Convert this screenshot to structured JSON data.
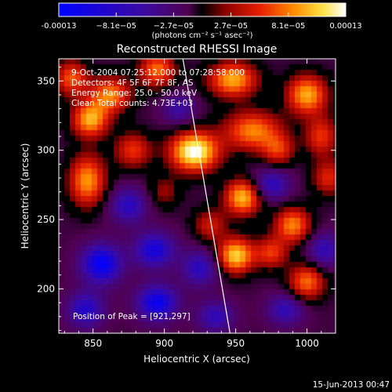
{
  "chart_data": {
    "type": "heatmap",
    "title": "Reconstructed RHESSI Image",
    "xlabel": "Heliocentric X (arcsec)",
    "ylabel": "Heliocentric Y (arcsec)",
    "xlim": [
      826,
      1020
    ],
    "ylim": [
      168,
      366
    ],
    "x_ticks": [
      850,
      900,
      950,
      1000
    ],
    "y_ticks": [
      200,
      250,
      300,
      350
    ],
    "colorbar": {
      "min": -0.00013,
      "max": 0.00013,
      "tick_labels": [
        "-0.00013",
        "−8.1e−05",
        "−2.7e−05",
        "2.7e−05",
        "8.1e−05",
        "0.00013"
      ],
      "units_label": "(photons cm⁻² s⁻¹ asec⁻²)"
    },
    "annotations": {
      "time_range": "9-Oct-2004 07:25:12.000 to 07:28:58.000",
      "detectors": "Detectors: 4F 5F 6F 7F 8F, AS",
      "energy": "Energy Range: 25.0 - 50.0 keV",
      "clean": "Clean     Total counts: 4.73E+03",
      "peak": "Position of Peak = [921,297]"
    },
    "peak_position": [
      921,
      297
    ],
    "limb_line": [
      [
        913,
        366
      ],
      [
        946,
        168
      ]
    ],
    "timestamp": "15-Jun-2013 00:47",
    "hotspots": [
      {
        "x": 921,
        "y": 299,
        "amp": 1.15,
        "sx": 12,
        "sy": 10
      },
      {
        "x": 962,
        "y": 314,
        "amp": 0.75,
        "sx": 14,
        "sy": 10
      },
      {
        "x": 955,
        "y": 266,
        "amp": 0.9,
        "sx": 9,
        "sy": 9
      },
      {
        "x": 950,
        "y": 224,
        "amp": 0.95,
        "sx": 9,
        "sy": 9
      },
      {
        "x": 848,
        "y": 322,
        "amp": 0.85,
        "sx": 9,
        "sy": 9
      },
      {
        "x": 862,
        "y": 340,
        "amp": 0.75,
        "sx": 10,
        "sy": 9
      },
      {
        "x": 846,
        "y": 278,
        "amp": 0.8,
        "sx": 9,
        "sy": 13
      },
      {
        "x": 878,
        "y": 300,
        "amp": 0.55,
        "sx": 9,
        "sy": 9
      },
      {
        "x": 895,
        "y": 358,
        "amp": 0.7,
        "sx": 9,
        "sy": 9
      },
      {
        "x": 948,
        "y": 351,
        "amp": 0.85,
        "sx": 12,
        "sy": 9
      },
      {
        "x": 1000,
        "y": 340,
        "amp": 0.85,
        "sx": 10,
        "sy": 10
      },
      {
        "x": 1010,
        "y": 310,
        "amp": 0.55,
        "sx": 8,
        "sy": 10
      },
      {
        "x": 980,
        "y": 300,
        "amp": 0.5,
        "sx": 8,
        "sy": 8
      },
      {
        "x": 990,
        "y": 246,
        "amp": 0.75,
        "sx": 9,
        "sy": 9
      },
      {
        "x": 1000,
        "y": 205,
        "amp": 0.7,
        "sx": 9,
        "sy": 9
      },
      {
        "x": 975,
        "y": 226,
        "amp": 0.55,
        "sx": 8,
        "sy": 8
      },
      {
        "x": 932,
        "y": 246,
        "amp": 0.45,
        "sx": 8,
        "sy": 8
      },
      {
        "x": 900,
        "y": 270,
        "amp": 0.3,
        "sx": 8,
        "sy": 8
      },
      {
        "x": 835,
        "y": 352,
        "amp": 0.65,
        "sx": 8,
        "sy": 9
      },
      {
        "x": 1015,
        "y": 280,
        "amp": 0.5,
        "sx": 8,
        "sy": 9
      },
      {
        "x": 856,
        "y": 218,
        "amp": -0.85,
        "sx": 10,
        "sy": 10
      },
      {
        "x": 893,
        "y": 228,
        "amp": -0.7,
        "sx": 10,
        "sy": 9
      },
      {
        "x": 895,
        "y": 190,
        "amp": -0.8,
        "sx": 10,
        "sy": 9
      },
      {
        "x": 845,
        "y": 185,
        "amp": -0.6,
        "sx": 9,
        "sy": 9
      },
      {
        "x": 875,
        "y": 260,
        "amp": -0.55,
        "sx": 9,
        "sy": 9
      },
      {
        "x": 936,
        "y": 180,
        "amp": -0.5,
        "sx": 9,
        "sy": 8
      },
      {
        "x": 925,
        "y": 215,
        "amp": -0.55,
        "sx": 9,
        "sy": 9
      },
      {
        "x": 985,
        "y": 185,
        "amp": -0.5,
        "sx": 9,
        "sy": 8
      },
      {
        "x": 975,
        "y": 275,
        "amp": -0.55,
        "sx": 9,
        "sy": 8
      },
      {
        "x": 910,
        "y": 330,
        "amp": -0.4,
        "sx": 8,
        "sy": 8
      },
      {
        "x": 1012,
        "y": 228,
        "amp": -0.5,
        "sx": 8,
        "sy": 9
      }
    ]
  }
}
